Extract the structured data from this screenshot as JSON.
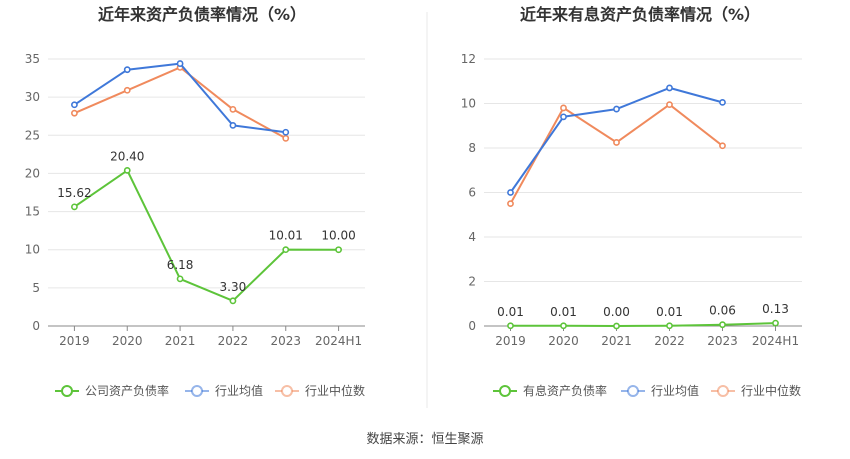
{
  "source_text": "数据来源：恒生聚源",
  "colors": {
    "company": "#5dc43a",
    "industry_avg": "#3f78d9",
    "industry_median": "#f08a5d",
    "grid": "#e6e6e6",
    "axis": "#888888",
    "divider": "#e8e8e8"
  },
  "chart_data": [
    {
      "type": "line",
      "title": "近年来资产负债率情况（%）",
      "categories": [
        "2019",
        "2020",
        "2021",
        "2022",
        "2023",
        "2024H1"
      ],
      "ylim": [
        0,
        35
      ],
      "yticks": [
        0,
        5,
        10,
        15,
        20,
        25,
        30,
        35
      ],
      "grid": true,
      "legend_position": "bottom",
      "series": [
        {
          "name": "公司资产负债率",
          "color_key": "company",
          "values": [
            15.62,
            20.4,
            6.18,
            3.3,
            10.01,
            10.0
          ],
          "labels": [
            "15.62",
            "20.40",
            "6.18",
            "3.30",
            "10.01",
            "10.00"
          ]
        },
        {
          "name": "行业均值",
          "color_key": "industry_avg",
          "values": [
            29.0,
            33.6,
            34.4,
            26.3,
            25.4,
            null
          ]
        },
        {
          "name": "行业中位数",
          "color_key": "industry_median",
          "values": [
            27.9,
            30.9,
            33.9,
            28.4,
            24.6,
            null
          ]
        }
      ]
    },
    {
      "type": "line",
      "title": "近年来有息资产负债率情况（%）",
      "categories": [
        "2019",
        "2020",
        "2021",
        "2022",
        "2023",
        "2024H1"
      ],
      "ylim": [
        0,
        12
      ],
      "yticks": [
        0,
        2,
        4,
        6,
        8,
        10,
        12
      ],
      "grid": true,
      "legend_position": "bottom",
      "series": [
        {
          "name": "有息资产负债率",
          "color_key": "company",
          "values": [
            0.01,
            0.01,
            0.0,
            0.01,
            0.06,
            0.13
          ],
          "labels": [
            "0.01",
            "0.01",
            "0.00",
            "0.01",
            "0.06",
            "0.13"
          ]
        },
        {
          "name": "行业均值",
          "color_key": "industry_avg",
          "values": [
            6.0,
            9.4,
            9.75,
            10.7,
            10.05,
            null
          ]
        },
        {
          "name": "行业中位数",
          "color_key": "industry_median",
          "values": [
            5.5,
            9.8,
            8.25,
            9.95,
            8.1,
            null
          ]
        }
      ]
    }
  ]
}
